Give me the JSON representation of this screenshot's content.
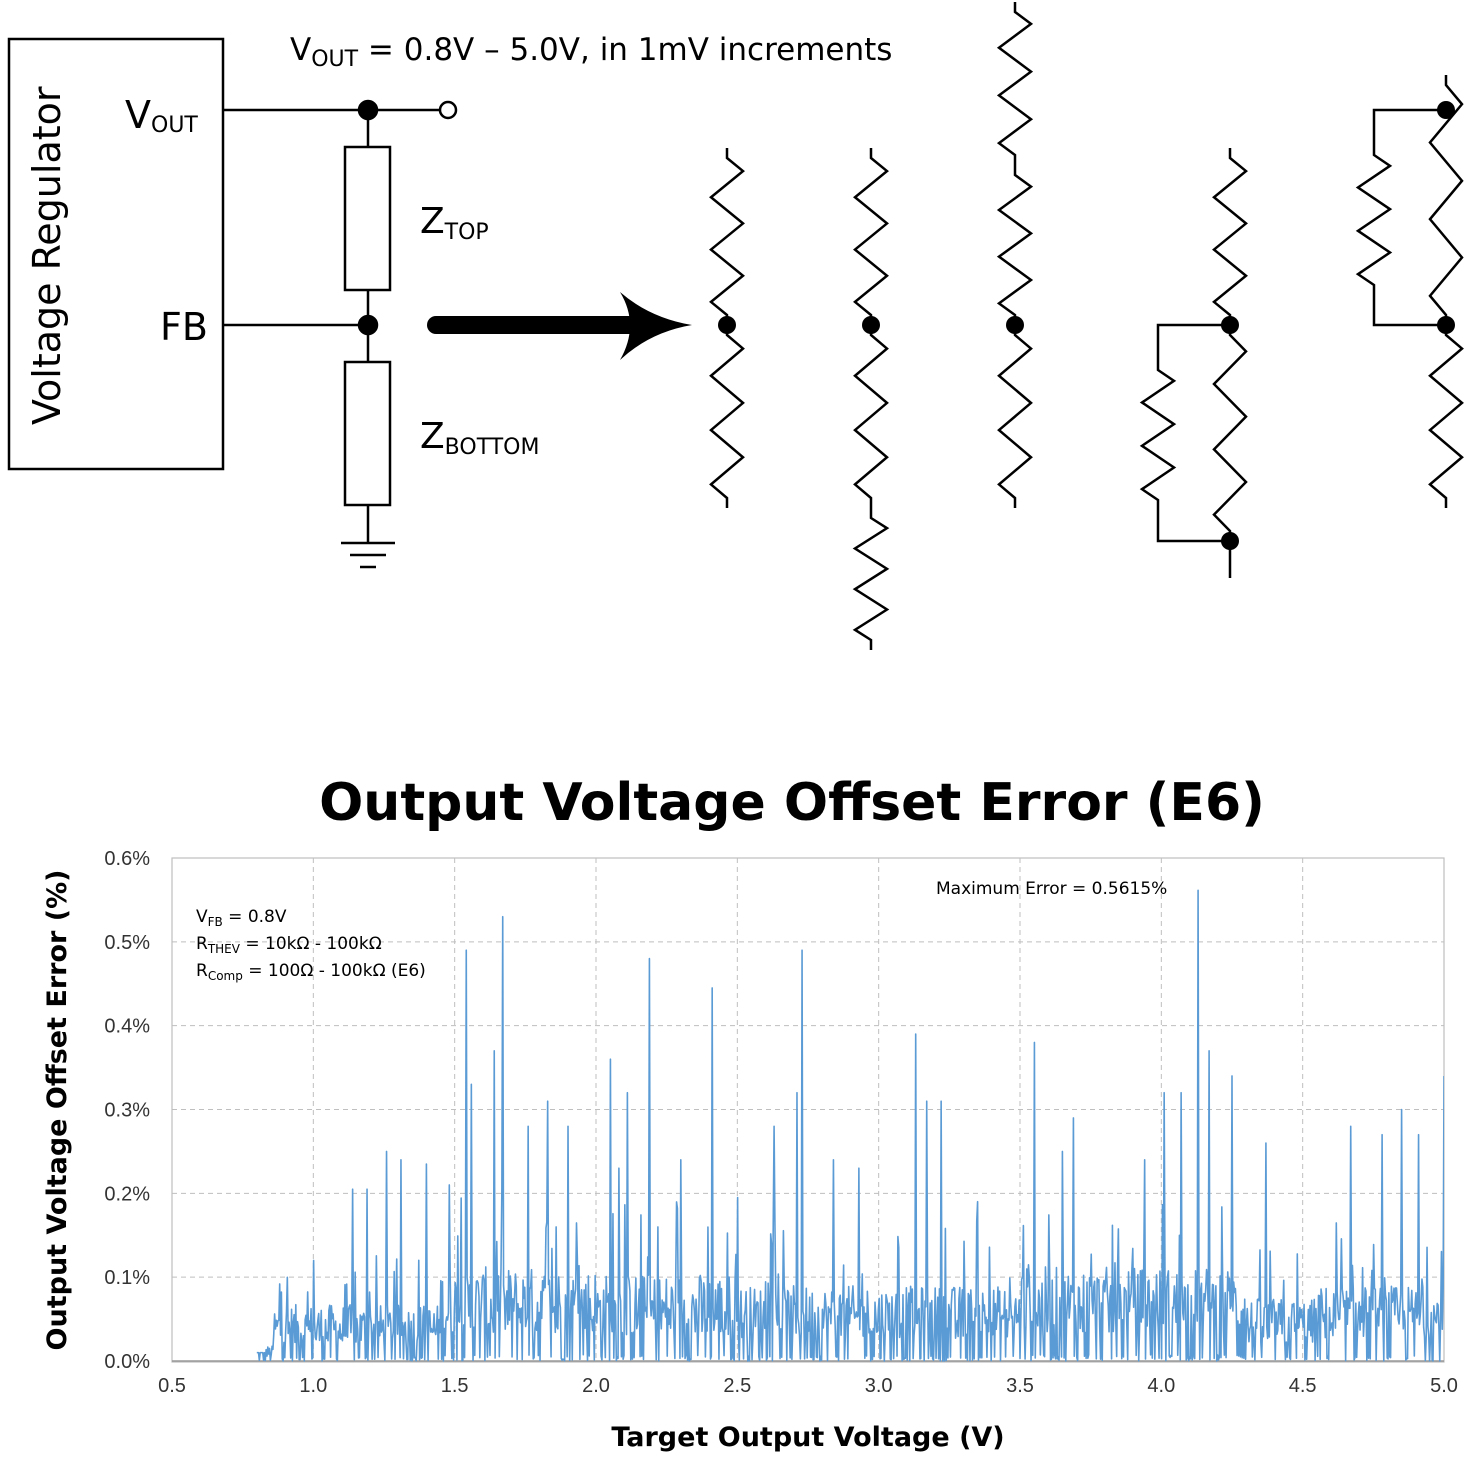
{
  "schematic": {
    "regulator_label": "Voltage Regulator",
    "vout_pin": {
      "main": "V",
      "sub": "OUT"
    },
    "fb_pin": "FB",
    "range_note": {
      "v": "V",
      "sub": "OUT",
      "rest": " = 0.8V – 5.0V, in 1mV increments"
    },
    "z_top": {
      "main": "Z",
      "sub": "TOP"
    },
    "z_bottom": {
      "main": "Z",
      "sub": "BOTTOM"
    }
  },
  "chart_data": {
    "type": "line",
    "title": "Output Voltage Offset Error (E6)",
    "xlabel": "Target Output Voltage (V)",
    "ylabel": "Output Voltage Offset Error (%)",
    "xlim": [
      0.5,
      5.0
    ],
    "ylim": [
      0.0,
      0.6
    ],
    "x_ticks": [
      "0.5",
      "1.0",
      "1.5",
      "2.0",
      "2.5",
      "3.0",
      "3.5",
      "4.0",
      "4.5",
      "5.0"
    ],
    "y_ticks": [
      "0.0%",
      "0.1%",
      "0.2%",
      "0.3%",
      "0.4%",
      "0.5%",
      "0.6%"
    ],
    "grid": true,
    "series_color": "#5b9bd5",
    "annotations": {
      "max_error": "Maximum Error = 0.5615%",
      "vfb": {
        "main": "V",
        "sub": "FB",
        "rest": " = 0.8V"
      },
      "rthev": {
        "main": "R",
        "sub": "THEV",
        "rest": " = 10kΩ - 100kΩ"
      },
      "rcomp": {
        "main": "R",
        "sub": "Comp",
        "rest": " = 100Ω - 100kΩ (E6)"
      }
    },
    "series": [
      {
        "x_start": 0.8,
        "x_end": 5.0,
        "peaks": [
          [
            0.88,
            0.092
          ],
          [
            1.0,
            0.12
          ],
          [
            1.14,
            0.205
          ],
          [
            1.19,
            0.205
          ],
          [
            1.26,
            0.25
          ],
          [
            1.31,
            0.24
          ],
          [
            1.4,
            0.235
          ],
          [
            1.48,
            0.21
          ],
          [
            1.54,
            0.49
          ],
          [
            1.56,
            0.33
          ],
          [
            1.64,
            0.37
          ],
          [
            1.67,
            0.53
          ],
          [
            1.76,
            0.28
          ],
          [
            1.83,
            0.31
          ],
          [
            1.86,
            0.16
          ],
          [
            1.9,
            0.28
          ],
          [
            2.05,
            0.36
          ],
          [
            2.08,
            0.23
          ],
          [
            2.11,
            0.32
          ],
          [
            2.19,
            0.48
          ],
          [
            2.3,
            0.24
          ],
          [
            2.41,
            0.445
          ],
          [
            2.5,
            0.195
          ],
          [
            2.63,
            0.28
          ],
          [
            2.71,
            0.32
          ],
          [
            2.73,
            0.49
          ],
          [
            2.84,
            0.24
          ],
          [
            2.93,
            0.23
          ],
          [
            3.13,
            0.39
          ],
          [
            3.17,
            0.31
          ],
          [
            3.22,
            0.31
          ],
          [
            3.35,
            0.19
          ],
          [
            3.55,
            0.38
          ],
          [
            3.65,
            0.25
          ],
          [
            3.69,
            0.29
          ],
          [
            3.94,
            0.24
          ],
          [
            4.01,
            0.32
          ],
          [
            4.07,
            0.32
          ],
          [
            4.13,
            0.5615
          ],
          [
            4.17,
            0.37
          ],
          [
            4.25,
            0.34
          ],
          [
            4.37,
            0.26
          ],
          [
            4.67,
            0.28
          ],
          [
            4.78,
            0.27
          ],
          [
            4.85,
            0.3
          ],
          [
            4.91,
            0.27
          ],
          [
            5.0,
            0.34
          ]
        ]
      }
    ]
  }
}
